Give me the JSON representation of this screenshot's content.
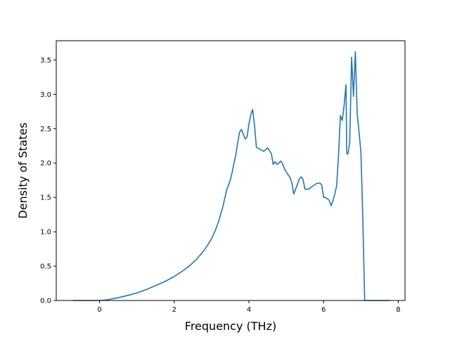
{
  "chart_data": {
    "type": "line",
    "title": "",
    "xlabel": "Frequency (THz)",
    "ylabel": "Density of States",
    "xlim": [
      -1.16,
      8.18
    ],
    "ylim": [
      0.0,
      3.78
    ],
    "grid": false,
    "legend": "none",
    "xticks": [
      {
        "value": 0,
        "label": "0"
      },
      {
        "value": 2,
        "label": "2"
      },
      {
        "value": 4,
        "label": "4"
      },
      {
        "value": 6,
        "label": "6"
      },
      {
        "value": 8,
        "label": "8"
      }
    ],
    "yticks": [
      {
        "value": 0.0,
        "label": "0.0"
      },
      {
        "value": 0.5,
        "label": "0.5"
      },
      {
        "value": 1.0,
        "label": "1.0"
      },
      {
        "value": 1.5,
        "label": "1.5"
      },
      {
        "value": 2.0,
        "label": "2.0"
      },
      {
        "value": 2.5,
        "label": "2.5"
      },
      {
        "value": 3.0,
        "label": "3.0"
      },
      {
        "value": 3.5,
        "label": "3.5"
      }
    ],
    "series": [
      {
        "color": "#1f77b4",
        "x": [
          -0.72,
          0.0,
          0.2,
          0.5,
          0.8,
          1.0,
          1.3,
          1.6,
          1.8,
          2.0,
          2.2,
          2.4,
          2.6,
          2.8,
          2.9,
          3.0,
          3.1,
          3.2,
          3.25,
          3.3,
          3.4,
          3.5,
          3.55,
          3.6,
          3.65,
          3.7,
          3.75,
          3.8,
          3.85,
          3.9,
          3.95,
          4.0,
          4.05,
          4.1,
          4.15,
          4.2,
          4.3,
          4.4,
          4.5,
          4.6,
          4.65,
          4.7,
          4.75,
          4.8,
          4.85,
          4.9,
          4.95,
          5.0,
          5.05,
          5.1,
          5.15,
          5.2,
          5.3,
          5.35,
          5.4,
          5.45,
          5.5,
          5.6,
          5.7,
          5.8,
          5.9,
          5.95,
          6.0,
          6.05,
          6.1,
          6.15,
          6.2,
          6.25,
          6.3,
          6.35,
          6.4,
          6.45,
          6.5,
          6.55,
          6.6,
          6.62,
          6.65,
          6.7,
          6.75,
          6.8,
          6.85,
          6.9,
          6.95,
          7.0,
          7.05,
          7.1,
          7.2,
          7.78
        ],
        "y": [
          0.0,
          0.0,
          0.01,
          0.04,
          0.08,
          0.11,
          0.17,
          0.24,
          0.29,
          0.35,
          0.42,
          0.5,
          0.6,
          0.73,
          0.81,
          0.9,
          1.02,
          1.17,
          1.27,
          1.36,
          1.6,
          1.75,
          1.86,
          2.0,
          2.12,
          2.3,
          2.45,
          2.49,
          2.42,
          2.35,
          2.38,
          2.57,
          2.7,
          2.78,
          2.55,
          2.23,
          2.2,
          2.17,
          2.22,
          2.14,
          1.98,
          2.02,
          1.98,
          2.0,
          2.03,
          1.99,
          1.92,
          1.87,
          1.83,
          1.79,
          1.71,
          1.55,
          1.69,
          1.77,
          1.8,
          1.76,
          1.62,
          1.62,
          1.66,
          1.7,
          1.71,
          1.68,
          1.5,
          1.5,
          1.48,
          1.46,
          1.38,
          1.45,
          1.55,
          1.67,
          2.12,
          2.69,
          2.62,
          2.84,
          3.14,
          2.14,
          2.13,
          2.3,
          3.54,
          2.97,
          3.62,
          2.72,
          2.45,
          2.15,
          1.2,
          0.0,
          0.0,
          0.0
        ]
      }
    ]
  }
}
